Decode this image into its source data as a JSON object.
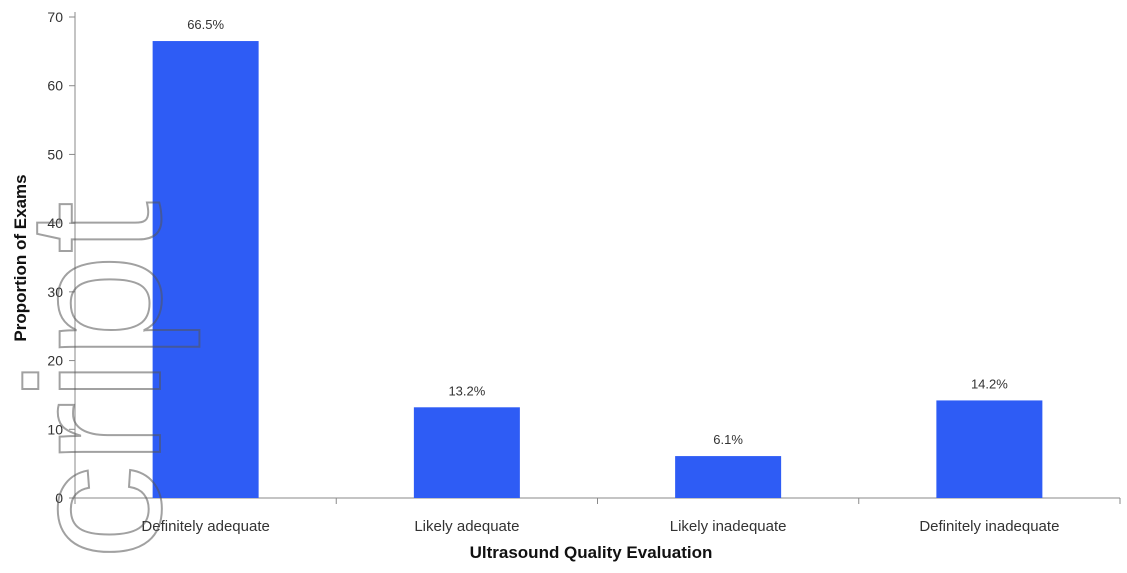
{
  "chart_data": {
    "type": "bar",
    "categories": [
      "Definitely adequate",
      "Likely adequate",
      "Likely inadequate",
      "Definitely inadequate"
    ],
    "values": [
      66.5,
      13.2,
      6.1,
      14.2
    ],
    "data_labels": [
      "66.5%",
      "13.2%",
      "6.1%",
      "14.2%"
    ],
    "title": "",
    "xlabel": "Ultrasound Quality Evaluation",
    "ylabel": "Proportion of Exams",
    "ylim": [
      0,
      70
    ],
    "yticks": [
      0,
      10,
      20,
      30,
      40,
      50,
      60,
      70
    ],
    "bar_color": "#2e5cf5",
    "grid": false,
    "legend": "none"
  },
  "watermark": {
    "text": "cript"
  }
}
